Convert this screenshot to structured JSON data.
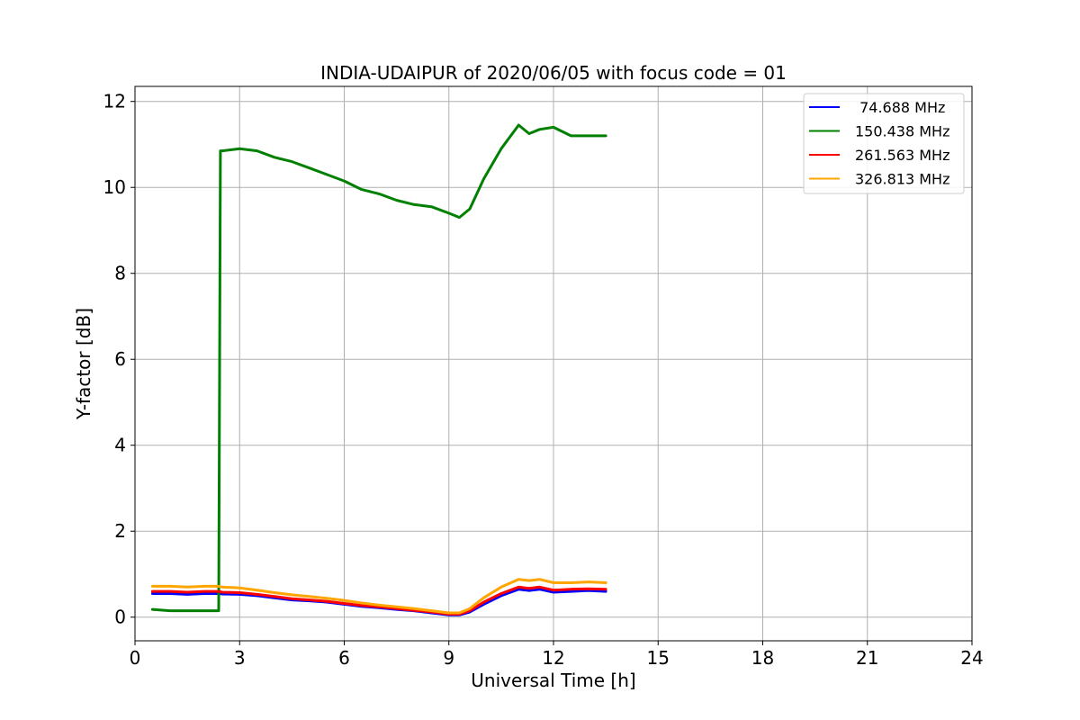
{
  "chart_data": {
    "type": "line",
    "title": "INDIA-UDAIPUR of 2020/06/05 with focus code = 01",
    "xlabel": "Universal Time [h]",
    "ylabel": "Y-factor [dB]",
    "xlim": [
      0,
      24
    ],
    "ylim": [
      -0.55,
      12.35
    ],
    "xticks": [
      0,
      3,
      6,
      9,
      12,
      15,
      18,
      21,
      24
    ],
    "yticks": [
      0,
      2,
      4,
      6,
      8,
      10,
      12
    ],
    "grid": true,
    "legend_position": "top-right",
    "series": [
      {
        "name": " 74.688 MHz",
        "color": "#0000ff",
        "x": [
          0.5,
          1.0,
          1.5,
          2.0,
          2.4,
          2.5,
          3.0,
          3.5,
          4.0,
          4.5,
          5.0,
          5.5,
          6.0,
          6.5,
          7.0,
          7.5,
          8.0,
          8.5,
          9.0,
          9.3,
          9.6,
          10.0,
          10.5,
          11.0,
          11.3,
          11.6,
          12.0,
          12.5,
          13.0,
          13.5
        ],
        "y": [
          0.55,
          0.55,
          0.53,
          0.55,
          0.55,
          0.54,
          0.53,
          0.5,
          0.45,
          0.4,
          0.38,
          0.35,
          0.3,
          0.25,
          0.22,
          0.18,
          0.15,
          0.1,
          0.05,
          0.05,
          0.12,
          0.3,
          0.5,
          0.65,
          0.62,
          0.65,
          0.58,
          0.6,
          0.62,
          0.6
        ]
      },
      {
        "name": "150.438 MHz",
        "color": "#008000",
        "x": [
          0.5,
          1.0,
          1.5,
          2.0,
          2.4,
          2.45,
          2.5,
          3.0,
          3.5,
          4.0,
          4.5,
          5.0,
          5.5,
          6.0,
          6.5,
          7.0,
          7.5,
          8.0,
          8.5,
          9.0,
          9.3,
          9.6,
          10.0,
          10.5,
          11.0,
          11.3,
          11.6,
          12.0,
          12.5,
          13.0,
          13.5
        ],
        "y": [
          0.18,
          0.15,
          0.15,
          0.15,
          0.15,
          10.85,
          10.85,
          10.9,
          10.85,
          10.7,
          10.6,
          10.45,
          10.3,
          10.15,
          9.95,
          9.85,
          9.7,
          9.6,
          9.55,
          9.4,
          9.3,
          9.5,
          10.2,
          10.9,
          11.45,
          11.25,
          11.35,
          11.4,
          11.2,
          11.2,
          11.2
        ]
      },
      {
        "name": "261.563 MHz",
        "color": "#ff0000",
        "x": [
          0.5,
          1.0,
          1.5,
          2.0,
          2.4,
          2.5,
          3.0,
          3.5,
          4.0,
          4.5,
          5.0,
          5.5,
          6.0,
          6.5,
          7.0,
          7.5,
          8.0,
          8.5,
          9.0,
          9.3,
          9.6,
          10.0,
          10.5,
          11.0,
          11.3,
          11.6,
          12.0,
          12.5,
          13.0,
          13.5
        ],
        "y": [
          0.6,
          0.6,
          0.58,
          0.6,
          0.6,
          0.58,
          0.57,
          0.53,
          0.48,
          0.43,
          0.4,
          0.37,
          0.32,
          0.27,
          0.24,
          0.2,
          0.16,
          0.12,
          0.07,
          0.07,
          0.15,
          0.35,
          0.55,
          0.7,
          0.67,
          0.7,
          0.63,
          0.65,
          0.66,
          0.65
        ]
      },
      {
        "name": "326.813 MHz",
        "color": "#ffa500",
        "x": [
          0.5,
          1.0,
          1.5,
          2.0,
          2.4,
          2.5,
          3.0,
          3.5,
          4.0,
          4.5,
          5.0,
          5.5,
          6.0,
          6.5,
          7.0,
          7.5,
          8.0,
          8.5,
          9.0,
          9.3,
          9.6,
          10.0,
          10.5,
          11.0,
          11.3,
          11.6,
          12.0,
          12.5,
          13.0,
          13.5
        ],
        "y": [
          0.72,
          0.72,
          0.7,
          0.72,
          0.72,
          0.7,
          0.68,
          0.63,
          0.57,
          0.52,
          0.48,
          0.44,
          0.39,
          0.33,
          0.28,
          0.24,
          0.2,
          0.15,
          0.1,
          0.1,
          0.2,
          0.45,
          0.7,
          0.88,
          0.85,
          0.88,
          0.8,
          0.8,
          0.82,
          0.8
        ]
      }
    ]
  }
}
